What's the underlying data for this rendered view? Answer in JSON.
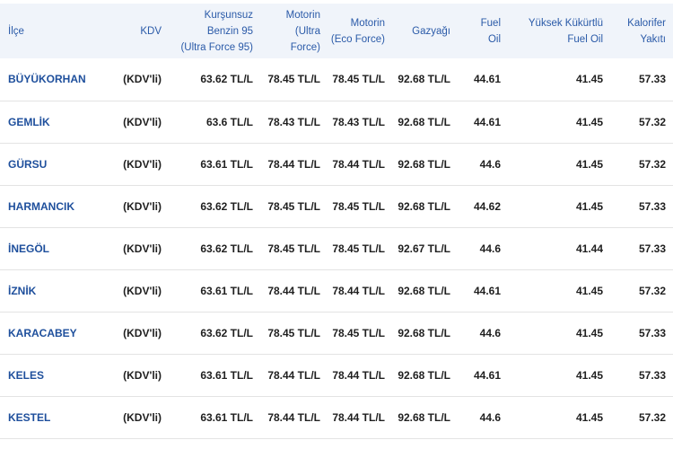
{
  "table": {
    "headers": [
      [
        "İlçe"
      ],
      [
        "KDV"
      ],
      [
        "Kurşunsuz",
        "Benzin 95",
        "(Ultra Force 95)"
      ],
      [
        "Motorin",
        "(Ultra",
        "Force)"
      ],
      [
        "Motorin",
        "(Eco Force)"
      ],
      [
        "Gazyağı"
      ],
      [
        "Fuel",
        "Oil"
      ],
      [
        "Yüksek Kükürtlü",
        "Fuel Oil"
      ],
      [
        "Kalorifer",
        "Yakıtı"
      ]
    ],
    "rows": [
      [
        "BÜYÜKORHAN",
        "(KDV'li)",
        "63.62 TL/L",
        "78.45 TL/L",
        "78.45 TL/L",
        "92.68 TL/L",
        "44.61",
        "41.45",
        "57.33"
      ],
      [
        "GEMLİK",
        "(KDV'li)",
        "63.6 TL/L",
        "78.43 TL/L",
        "78.43 TL/L",
        "92.68 TL/L",
        "44.61",
        "41.45",
        "57.32"
      ],
      [
        "GÜRSU",
        "(KDV'li)",
        "63.61 TL/L",
        "78.44 TL/L",
        "78.44 TL/L",
        "92.68 TL/L",
        "44.6",
        "41.45",
        "57.32"
      ],
      [
        "HARMANCIK",
        "(KDV'li)",
        "63.62 TL/L",
        "78.45 TL/L",
        "78.45 TL/L",
        "92.68 TL/L",
        "44.62",
        "41.45",
        "57.33"
      ],
      [
        "İNEGÖL",
        "(KDV'li)",
        "63.62 TL/L",
        "78.45 TL/L",
        "78.45 TL/L",
        "92.67 TL/L",
        "44.6",
        "41.44",
        "57.33"
      ],
      [
        "İZNİK",
        "(KDV'li)",
        "63.61 TL/L",
        "78.44 TL/L",
        "78.44 TL/L",
        "92.68 TL/L",
        "44.61",
        "41.45",
        "57.32"
      ],
      [
        "KARACABEY",
        "(KDV'li)",
        "63.62 TL/L",
        "78.45 TL/L",
        "78.45 TL/L",
        "92.68 TL/L",
        "44.6",
        "41.45",
        "57.33"
      ],
      [
        "KELES",
        "(KDV'li)",
        "63.61 TL/L",
        "78.44 TL/L",
        "78.44 TL/L",
        "92.68 TL/L",
        "44.61",
        "41.45",
        "57.33"
      ],
      [
        "KESTEL",
        "(KDV'li)",
        "63.61 TL/L",
        "78.44 TL/L",
        "78.44 TL/L",
        "92.68 TL/L",
        "44.6",
        "41.45",
        "57.32"
      ]
    ]
  }
}
